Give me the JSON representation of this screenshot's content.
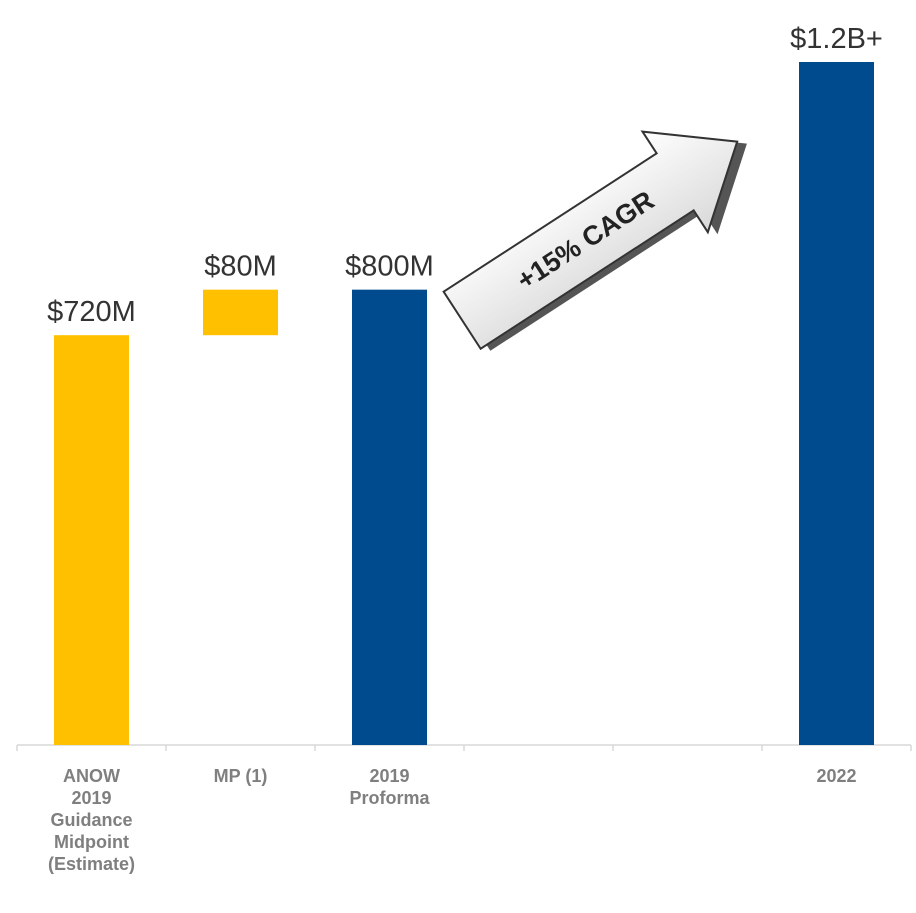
{
  "chart_data": {
    "type": "waterfall",
    "categories": [
      "ANOW 2019 Guidance Midpoint (Estimate)",
      "MP (1)",
      "2019 Proforma",
      null,
      null,
      "2022"
    ],
    "values": [
      720,
      80,
      800,
      null,
      null,
      1200
    ],
    "value_labels": [
      "$720M",
      "$80M",
      "$800M",
      null,
      null,
      "$1.2B+"
    ],
    "measure": [
      "absolute",
      "relative",
      "total",
      null,
      null,
      "absolute"
    ],
    "colors": [
      "#FFC000",
      "#FFC000",
      "#004B8D",
      null,
      null,
      "#004B8D"
    ],
    "ylim": [
      0,
      1200
    ],
    "annotation": "+15% CAGR"
  }
}
